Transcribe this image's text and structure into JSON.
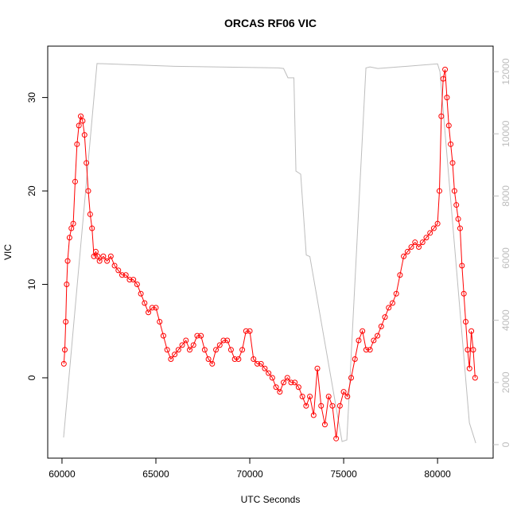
{
  "chart_data": {
    "type": "line",
    "title": "ORCAS RF06 VIC",
    "xlabel": "UTC Seconds",
    "ylabel": "VIC",
    "xlim": [
      59240,
      82960
    ],
    "xticks": [
      60000,
      65000,
      70000,
      75000,
      80000
    ],
    "ylim": [
      -8.6,
      35.5
    ],
    "yticks": [
      0,
      10,
      20,
      30
    ],
    "y2lim": [
      -435,
      12820
    ],
    "y2ticks": [
      0,
      2000,
      4000,
      6000,
      8000,
      10000,
      12000
    ],
    "series": [
      {
        "color": "#ff0000",
        "marker": "circle",
        "axis": "y",
        "x": [
          60100,
          60150,
          60200,
          60250,
          60300,
          60400,
          60500,
          60600,
          60700,
          60800,
          60900,
          61000,
          61100,
          61200,
          61300,
          61400,
          61500,
          61600,
          61700,
          61800,
          61900,
          62000,
          62200,
          62400,
          62600,
          62800,
          63000,
          63200,
          63400,
          63600,
          63800,
          64000,
          64200,
          64400,
          64600,
          64800,
          65000,
          65200,
          65400,
          65600,
          65800,
          66000,
          66200,
          66400,
          66600,
          66800,
          67000,
          67200,
          67400,
          67600,
          67800,
          68000,
          68200,
          68400,
          68600,
          68800,
          69000,
          69200,
          69400,
          69600,
          69800,
          70000,
          70200,
          70400,
          70600,
          70800,
          71000,
          71200,
          71400,
          71600,
          71800,
          72000,
          72200,
          72400,
          72600,
          72800,
          73000,
          73200,
          73400,
          73600,
          73800,
          74000,
          74200,
          74400,
          74600,
          74800,
          75000,
          75200,
          75400,
          75600,
          75800,
          76000,
          76200,
          76400,
          76600,
          76800,
          77000,
          77200,
          77400,
          77600,
          77800,
          78000,
          78200,
          78400,
          78600,
          78800,
          79000,
          79200,
          79400,
          79600,
          79800,
          80000,
          80100,
          80200,
          80300,
          80400,
          80500,
          80600,
          80700,
          80800,
          80900,
          81000,
          81100,
          81200,
          81300,
          81400,
          81500,
          81600,
          81700,
          81800,
          81900,
          82000
        ],
        "values": [
          1.5,
          3,
          6,
          10,
          12.5,
          15,
          16,
          16.5,
          21,
          25,
          27,
          28,
          27.5,
          26,
          23,
          20,
          17.5,
          16,
          13,
          13.5,
          13,
          12.5,
          13,
          12.5,
          13,
          12,
          11.5,
          11,
          11,
          10.5,
          10.5,
          10,
          9,
          8,
          7,
          7.5,
          7.5,
          6,
          4.5,
          3,
          2,
          2.5,
          3,
          3.5,
          4,
          3,
          3.5,
          4.5,
          4.5,
          3,
          2,
          1.5,
          3,
          3.5,
          4,
          4,
          3,
          2,
          2,
          3,
          5,
          5,
          2,
          1.5,
          1.5,
          1,
          0.5,
          0,
          -1,
          -1.5,
          -0.5,
          0,
          -0.5,
          -0.5,
          -1,
          -2,
          -3,
          -2,
          -4,
          1,
          -3,
          -5,
          -2,
          -3,
          -6.5,
          -3,
          -1.5,
          -2,
          0,
          2,
          4,
          5,
          3,
          3,
          4,
          4.5,
          5.5,
          6.5,
          7.5,
          8,
          9,
          11,
          13,
          13.5,
          14,
          14.5,
          14,
          14.5,
          15,
          15.5,
          16,
          16.5,
          20,
          28,
          32,
          33,
          30,
          27,
          25,
          23,
          20,
          18.5,
          17,
          16,
          12,
          9,
          6,
          3,
          1,
          5,
          3,
          0
        ]
      },
      {
        "color": "#bdbdbd",
        "axis": "y2",
        "x": [
          60085,
          61864,
          66000,
          71525,
          71800,
          72034,
          72350,
          72458,
          72712,
          73008,
          73200,
          74915,
          75169,
          76186,
          76400,
          76822,
          80000,
          80127,
          81695,
          82034
        ],
        "values": [
          230,
          12260,
          12170,
          12120,
          12100,
          11800,
          11800,
          8800,
          8700,
          6100,
          6050,
          100,
          150,
          12120,
          12150,
          12100,
          12250,
          12000,
          700,
          50
        ]
      }
    ]
  }
}
